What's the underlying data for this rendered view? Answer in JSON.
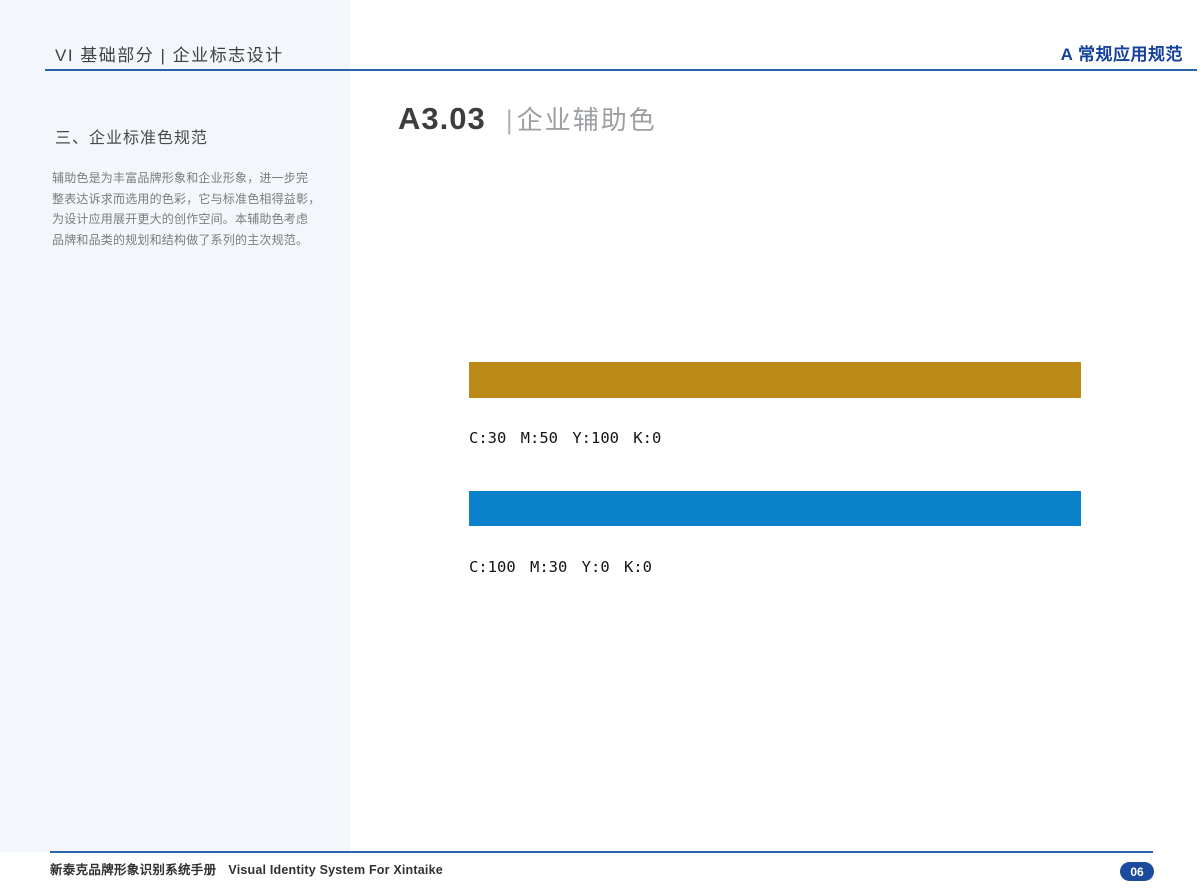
{
  "header": {
    "left_title": "VI 基础部分 | 企业标志设计",
    "right_title": "A 常规应用规范"
  },
  "sidebar": {
    "section_heading": "三、企业标准色规范",
    "paragraph_lines": [
      "辅助色是为丰富品牌形象和企业形象，进一步完",
      "整表达诉求而选用的色彩，它与标准色相得益彰，",
      "为设计应用展开更大的创作空间。本辅助色考虑",
      "品牌和品类的规划和结构做了系列的主次规范。"
    ]
  },
  "main": {
    "section_code": "A3.03",
    "section_divider": "|",
    "section_title": "企业辅助色",
    "swatches": [
      {
        "name": "auxiliary-color-gold",
        "hex": "#bc8a16",
        "cmyk_label": "C:30 M:50 Y:100 K:0"
      },
      {
        "name": "auxiliary-color-blue",
        "hex": "#0a82cb",
        "cmyk_label": "C:100 M:30 Y:0 K:0"
      }
    ]
  },
  "footer": {
    "manual_title_cn": "新泰克品牌形象识别系统手册",
    "manual_title_en": "Visual Identity System For Xintaike",
    "page_number": "06"
  },
  "theme": {
    "accent_navy": "#1c4a9c",
    "rule_blue": "#2a62ae",
    "sidebar_bg": "#f3f6fb"
  }
}
